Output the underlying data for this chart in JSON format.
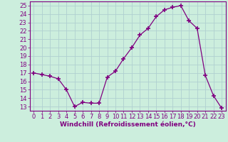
{
  "x": [
    0,
    1,
    2,
    3,
    4,
    5,
    6,
    7,
    8,
    9,
    10,
    11,
    12,
    13,
    14,
    15,
    16,
    17,
    18,
    19,
    20,
    21,
    22,
    23
  ],
  "y": [
    17,
    16.8,
    16.6,
    16.3,
    15.0,
    13.0,
    13.5,
    13.4,
    13.4,
    16.5,
    17.2,
    18.7,
    20.0,
    21.5,
    22.3,
    23.7,
    24.5,
    24.8,
    25.0,
    23.2,
    22.3,
    16.7,
    14.3,
    12.8
  ],
  "line_color": "#800080",
  "marker": "+",
  "marker_size": 4,
  "marker_linewidth": 1.2,
  "bg_color": "#cceedd",
  "grid_color": "#b0d0d0",
  "xlabel": "Windchill (Refroidissement éolien,°C)",
  "ylabel_ticks": [
    13,
    14,
    15,
    16,
    17,
    18,
    19,
    20,
    21,
    22,
    23,
    24,
    25
  ],
  "ylim": [
    12.5,
    25.5
  ],
  "xlim": [
    -0.5,
    23.5
  ],
  "label_fontsize": 6.5,
  "tick_fontsize": 6.0
}
